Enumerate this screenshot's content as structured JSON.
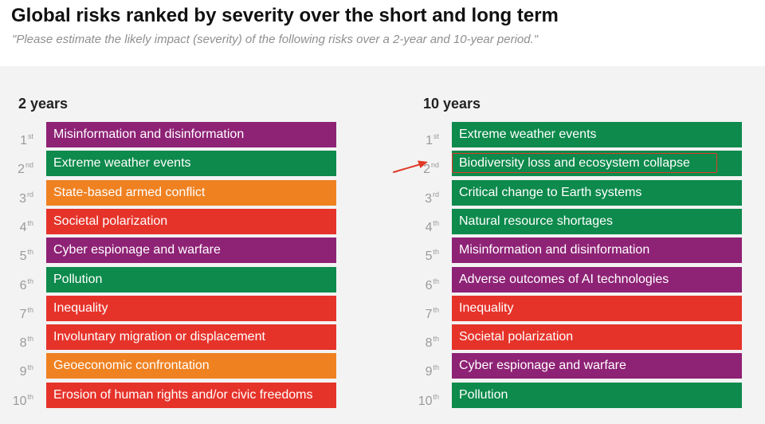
{
  "title": "Global risks ranked by severity over the short and long term",
  "subtitle": "\"Please estimate the likely impact (severity) of the following risks over a 2-year and 10-year period.\"",
  "colors": {
    "societal": "#b32a86",
    "environmental": "#0d8a4c",
    "geopolitical": "#ef8121",
    "annotation": "#e03a27"
  },
  "chart_data": {
    "type": "table",
    "title": "Global risks ranked by severity over the short and long term",
    "subtitle": "\"Please estimate the likely impact (severity) of the following risks over a 2-year and 10-year period.\"",
    "columns": [
      {
        "heading": "2 years",
        "rows": [
          {
            "rank": "1",
            "suffix": "st",
            "label": "Misinformation and disinformation",
            "color": "#8e2275"
          },
          {
            "rank": "2",
            "suffix": "nd",
            "label": "Extreme weather events",
            "color": "#0d8a4c"
          },
          {
            "rank": "3",
            "suffix": "rd",
            "label": "State-based armed conflict",
            "color": "#ef8121"
          },
          {
            "rank": "4",
            "suffix": "th",
            "label": "Societal polarization",
            "color": "#e6332a"
          },
          {
            "rank": "5",
            "suffix": "th",
            "label": "Cyber espionage and warfare",
            "color": "#8e2275"
          },
          {
            "rank": "6",
            "suffix": "th",
            "label": "Pollution",
            "color": "#0d8a4c"
          },
          {
            "rank": "7",
            "suffix": "th",
            "label": "Inequality",
            "color": "#e6332a"
          },
          {
            "rank": "8",
            "suffix": "th",
            "label": "Involuntary migration or displacement",
            "color": "#e6332a"
          },
          {
            "rank": "9",
            "suffix": "th",
            "label": "Geoeconomic confrontation",
            "color": "#ef8121"
          },
          {
            "rank": "10",
            "suffix": "th",
            "label": "Erosion of human rights and/or civic freedoms",
            "color": "#e6332a"
          }
        ]
      },
      {
        "heading": "10 years",
        "rows": [
          {
            "rank": "1",
            "suffix": "st",
            "label": "Extreme weather events",
            "color": "#0d8a4c"
          },
          {
            "rank": "2",
            "suffix": "nd",
            "label": "Biodiversity loss and ecosystem collapse",
            "color": "#0d8a4c",
            "highlighted": true
          },
          {
            "rank": "3",
            "suffix": "rd",
            "label": "Critical change to Earth systems",
            "color": "#0d8a4c"
          },
          {
            "rank": "4",
            "suffix": "th",
            "label": "Natural resource shortages",
            "color": "#0d8a4c"
          },
          {
            "rank": "5",
            "suffix": "th",
            "label": "Misinformation and disinformation",
            "color": "#8e2275"
          },
          {
            "rank": "6",
            "suffix": "th",
            "label": "Adverse outcomes of AI technologies",
            "color": "#8e2275"
          },
          {
            "rank": "7",
            "suffix": "th",
            "label": "Inequality",
            "color": "#e6332a"
          },
          {
            "rank": "8",
            "suffix": "th",
            "label": "Societal polarization",
            "color": "#e6332a"
          },
          {
            "rank": "9",
            "suffix": "th",
            "label": "Cyber espionage and warfare",
            "color": "#8e2275"
          },
          {
            "rank": "10",
            "suffix": "th",
            "label": "Pollution",
            "color": "#0d8a4c"
          }
        ]
      }
    ]
  }
}
